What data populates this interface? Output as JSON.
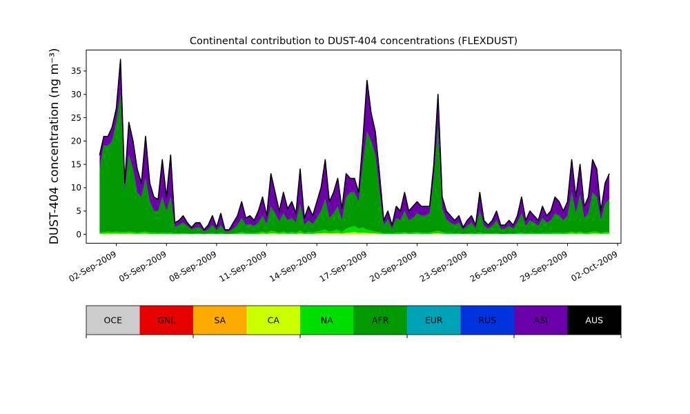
{
  "chart_data": {
    "type": "area",
    "stacked": true,
    "title": "Continental contribution to DUST-404 concentrations (FLEXDUST)",
    "xlabel": "",
    "ylabel": "DUST-404 concentration (ng m⁻³)",
    "x_unit": "days after 01-Sep-2009 00:00",
    "xlim": [
      -0.8,
      31.2
    ],
    "ylim": [
      -1.9,
      39.5
    ],
    "xticks": [
      1,
      4,
      7,
      10,
      13,
      16,
      19,
      22,
      25,
      28,
      31
    ],
    "xtick_labels": [
      "02-Sep-2009",
      "05-Sep-2009",
      "08-Sep-2009",
      "11-Sep-2009",
      "14-Sep-2009",
      "17-Sep-2009",
      "20-Sep-2009",
      "23-Sep-2009",
      "26-Sep-2009",
      "29-Sep-2009",
      "02-Oct-2009"
    ],
    "yticks": [
      0,
      5,
      10,
      15,
      20,
      25,
      30,
      35
    ],
    "ytick_labels": [
      "0",
      "5",
      "10",
      "15",
      "20",
      "25",
      "30",
      "35"
    ],
    "x": [
      0.0,
      0.25,
      0.5,
      0.75,
      1.0,
      1.25,
      1.5,
      1.75,
      2.0,
      2.25,
      2.5,
      2.75,
      3.0,
      3.25,
      3.5,
      3.75,
      4.0,
      4.25,
      4.5,
      4.75,
      5.0,
      5.25,
      5.5,
      5.75,
      6.0,
      6.25,
      6.5,
      6.75,
      7.0,
      7.25,
      7.5,
      7.75,
      8.0,
      8.25,
      8.5,
      8.75,
      9.0,
      9.25,
      9.5,
      9.75,
      10.0,
      10.25,
      10.5,
      10.75,
      11.0,
      11.25,
      11.5,
      11.75,
      12.0,
      12.25,
      12.5,
      12.75,
      13.0,
      13.25,
      13.5,
      13.75,
      14.0,
      14.25,
      14.5,
      14.75,
      15.0,
      15.25,
      15.5,
      15.75,
      16.0,
      16.25,
      16.5,
      16.75,
      17.0,
      17.25,
      17.5,
      17.75,
      18.0,
      18.25,
      18.5,
      18.75,
      19.0,
      19.25,
      19.5,
      19.75,
      20.0,
      20.25,
      20.5,
      20.75,
      21.0,
      21.25,
      21.5,
      21.75,
      22.0,
      22.25,
      22.5,
      22.75,
      23.0,
      23.25,
      23.5,
      23.75,
      24.0,
      24.25,
      24.5,
      24.75,
      25.0,
      25.25,
      25.5,
      25.75,
      26.0,
      26.25,
      26.5,
      26.75,
      27.0,
      27.25,
      27.5,
      27.75,
      28.0,
      28.25,
      28.5,
      28.75,
      29.0,
      29.25,
      29.5,
      29.75,
      30.0,
      30.25,
      30.5
    ],
    "total": [
      17,
      21,
      21,
      23,
      27,
      37.5,
      11,
      24,
      20,
      14,
      11,
      21,
      11,
      8,
      7.5,
      16,
      8,
      17,
      2.5,
      3,
      4,
      2.5,
      1.5,
      2.5,
      2.5,
      1,
      2,
      4,
      1.5,
      4.5,
      1,
      1,
      2.5,
      4,
      7,
      3.5,
      4,
      3,
      5,
      8,
      4,
      13,
      9,
      5,
      9,
      5.5,
      7,
      4.5,
      14,
      3.5,
      6,
      4,
      7,
      10,
      16,
      7,
      9,
      12,
      5.5,
      13,
      12,
      12,
      9,
      20,
      33,
      26,
      22,
      13,
      3,
      5,
      2,
      6,
      5,
      9,
      5,
      6,
      7,
      6,
      6,
      6,
      15,
      30,
      8,
      5,
      4,
      3,
      4,
      1.5,
      3,
      4,
      2,
      9,
      3,
      2,
      3,
      5,
      2,
      2,
      3,
      2,
      4,
      8,
      3,
      5,
      4,
      3,
      6,
      4,
      5,
      8,
      7,
      5,
      7,
      16,
      8,
      15,
      6,
      8,
      16,
      14,
      5,
      11,
      13
    ],
    "afr_top": [
      14,
      19,
      19,
      20,
      24,
      30,
      9.5,
      17,
      14,
      9,
      8,
      12,
      7,
      5,
      5,
      8,
      5,
      8,
      1.5,
      2,
      2.5,
      1.8,
      1.0,
      1.5,
      1.5,
      0.6,
      1.0,
      2.0,
      0.8,
      2.0,
      0.6,
      0.6,
      1.2,
      2.0,
      3.5,
      2.0,
      2.2,
      1.8,
      2.5,
      4.0,
      2.2,
      6.0,
      4.5,
      2.8,
      4.5,
      3.0,
      3.5,
      2.5,
      6.5,
      2.0,
      3.0,
      2.2,
      3.5,
      5.0,
      7.5,
      3.5,
      4.5,
      6.0,
      3.0,
      8.0,
      9.0,
      9.0,
      7.0,
      15,
      22,
      20,
      17,
      9.0,
      2.0,
      3.2,
      1.2,
      3.5,
      3.0,
      5.0,
      3.0,
      3.5,
      4.5,
      4.0,
      4.0,
      4.5,
      12,
      23,
      5.5,
      3.2,
      2.5,
      2.0,
      2.5,
      1.0,
      1.8,
      2.5,
      1.2,
      5.0,
      1.8,
      1.2,
      1.8,
      3.0,
      1.2,
      1.2,
      1.8,
      1.2,
      2.5,
      4.5,
      1.8,
      3.0,
      2.5,
      1.8,
      3.5,
      2.5,
      3.0,
      4.5,
      4.0,
      3.0,
      4.0,
      9.0,
      4.5,
      8.5,
      3.5,
      4.5,
      9.0,
      8.0,
      3.0,
      6.5,
      7.5
    ],
    "na_top": [
      0.4,
      0.5,
      0.6,
      0.5,
      0.6,
      0.5,
      0.5,
      0.6,
      0.5,
      0.4,
      0.5,
      0.6,
      0.4,
      0.4,
      0.3,
      0.4,
      0.3,
      0.4,
      0.2,
      0.2,
      0.3,
      0.2,
      0.1,
      0.2,
      0.2,
      0.1,
      0.2,
      0.3,
      0.1,
      0.3,
      0.1,
      0.1,
      0.2,
      0.3,
      0.5,
      0.3,
      0.3,
      0.3,
      0.4,
      0.6,
      0.4,
      0.8,
      0.6,
      0.4,
      0.6,
      0.4,
      0.5,
      0.4,
      0.8,
      0.3,
      0.5,
      0.4,
      0.6,
      0.8,
      1.0,
      0.6,
      0.8,
      1.0,
      0.5,
      1.2,
      1.5,
      1.8,
      1.2,
      1.5,
      1.0,
      0.8,
      0.6,
      0.5,
      0.2,
      0.3,
      0.2,
      0.4,
      0.3,
      0.5,
      0.3,
      0.4,
      0.5,
      0.4,
      0.4,
      0.4,
      0.6,
      0.8,
      0.5,
      0.3,
      0.3,
      0.2,
      0.3,
      0.1,
      0.2,
      0.3,
      0.2,
      0.4,
      0.2,
      0.2,
      0.2,
      0.3,
      0.1,
      0.1,
      0.2,
      0.1,
      0.3,
      0.4,
      0.2,
      0.3,
      0.3,
      0.2,
      0.3,
      0.3,
      0.3,
      0.4,
      0.4,
      0.3,
      0.4,
      0.6,
      0.4,
      0.6,
      0.3,
      0.4,
      0.6,
      0.6,
      0.3,
      0.5,
      0.5
    ],
    "ca_top": [
      0.15,
      0.15,
      0.2,
      0.15,
      0.2,
      0.15,
      0.15,
      0.2,
      0.15,
      0.1,
      0.15,
      0.2,
      0.1,
      0.1,
      0.1,
      0.1,
      0.1,
      0.1,
      0.05,
      0.05,
      0.1,
      0.05,
      0.05,
      0.05,
      0.05,
      0.05,
      0.05,
      0.1,
      0.05,
      0.1,
      0.05,
      0.05,
      0.05,
      0.1,
      0.15,
      0.1,
      0.1,
      0.1,
      0.1,
      0.2,
      0.1,
      0.25,
      0.2,
      0.1,
      0.2,
      0.1,
      0.15,
      0.1,
      0.25,
      0.1,
      0.15,
      0.1,
      0.2,
      0.25,
      0.3,
      0.2,
      0.25,
      0.3,
      0.15,
      0.35,
      0.4,
      0.5,
      0.35,
      0.4,
      0.3,
      0.25,
      0.2,
      0.15,
      0.05,
      0.1,
      0.05,
      0.1,
      0.1,
      0.15,
      0.1,
      0.1,
      0.15,
      0.1,
      0.1,
      0.1,
      0.2,
      0.25,
      0.15,
      0.1,
      0.1,
      0.05,
      0.1,
      0.05,
      0.05,
      0.1,
      0.05,
      0.1,
      0.05,
      0.05,
      0.05,
      0.1,
      0.05,
      0.05,
      0.05,
      0.05,
      0.1,
      0.1,
      0.05,
      0.1,
      0.1,
      0.05,
      0.1,
      0.1,
      0.1,
      0.1,
      0.1,
      0.1,
      0.1,
      0.2,
      0.1,
      0.2,
      0.1,
      0.1,
      0.2,
      0.2,
      0.1,
      0.15,
      0.15
    ],
    "asi_color": "#6a00a8",
    "na_color": "#00dd00",
    "ca_color": "#ccff00",
    "legend": {
      "placement": "below",
      "items": [
        {
          "label": "OCE",
          "color": "#cccccc",
          "text_color": "#000000"
        },
        {
          "label": "GNL",
          "color": "#e60000",
          "text_color": "#000000"
        },
        {
          "label": "SA",
          "color": "#ffaa00",
          "text_color": "#000000"
        },
        {
          "label": "CA",
          "color": "#ccff00",
          "text_color": "#000000"
        },
        {
          "label": "NA",
          "color": "#00dd00",
          "text_color": "#000000"
        },
        {
          "label": "AFR",
          "color": "#009a00",
          "text_color": "#000000"
        },
        {
          "label": "EUR",
          "color": "#00a3b5",
          "text_color": "#000000"
        },
        {
          "label": "RUS",
          "color": "#0033dd",
          "text_color": "#000000"
        },
        {
          "label": "ASI",
          "color": "#6a00a8",
          "text_color": "#000000"
        },
        {
          "label": "AUS",
          "color": "#000000",
          "text_color": "#ffffff"
        }
      ]
    },
    "grid": false
  }
}
